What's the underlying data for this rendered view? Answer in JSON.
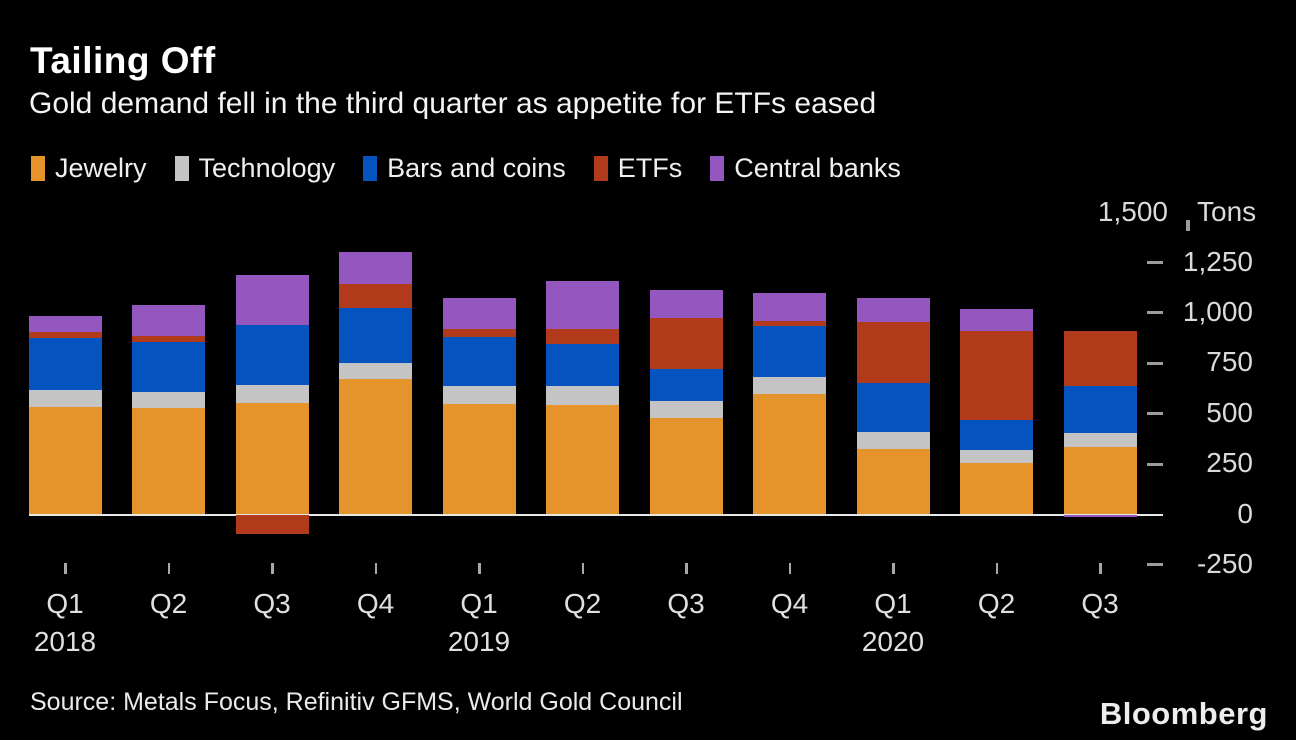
{
  "header": {
    "title": "Tailing Off",
    "subtitle": "Gold demand fell in the third quarter as appetite for ETFs eased"
  },
  "chart_data": {
    "type": "bar",
    "stacked": true,
    "title": "Tailing Off",
    "subtitle": "Gold demand fell in the third quarter as appetite for ETFs eased",
    "unit": "Tons",
    "categories": [
      "Q1",
      "Q2",
      "Q3",
      "Q4",
      "Q1",
      "Q2",
      "Q3",
      "Q4",
      "Q1",
      "Q2",
      "Q3"
    ],
    "year_labels": [
      {
        "text": "2018",
        "category_index": 0
      },
      {
        "text": "2019",
        "category_index": 4
      },
      {
        "text": "2020",
        "category_index": 8
      }
    ],
    "series": [
      {
        "name": "Jewelry",
        "color": "#E5942C",
        "values": [
          535,
          530,
          555,
          670,
          550,
          545,
          478,
          597,
          325,
          253,
          335
        ]
      },
      {
        "name": "Technology",
        "color": "#C4C4C4",
        "values": [
          85,
          80,
          85,
          80,
          85,
          90,
          85,
          87,
          83,
          67,
          68
        ]
      },
      {
        "name": "Bars and coins",
        "color": "#0553BE",
        "values": [
          255,
          245,
          300,
          275,
          245,
          212,
          158,
          250,
          243,
          150,
          235
        ]
      },
      {
        "name": "ETFs",
        "color": "#B03A1A",
        "values": [
          30,
          28,
          -95,
          120,
          42,
          72,
          255,
          27,
          303,
          440,
          272
        ]
      },
      {
        "name": "Central banks",
        "color": "#9357BF",
        "values": [
          80,
          158,
          250,
          155,
          152,
          237,
          140,
          137,
          120,
          108,
          -12
        ]
      }
    ],
    "yaxis": {
      "side": "right",
      "tick_labels": [
        "1,500",
        "1,250",
        "1,000",
        "750",
        "500",
        "250",
        "0",
        "-250"
      ],
      "tick_values": [
        1500,
        1250,
        1000,
        750,
        500,
        250,
        0,
        -250
      ],
      "unit": "Tons"
    },
    "ylim": [
      -250,
      1500
    ],
    "gridlines": "zero-only",
    "legend_position": "top"
  },
  "colors": {
    "background": "#000000",
    "zero_line": "#E8E8E6",
    "axis_text": "#DADADA",
    "tick_mark": "#9B9B9B",
    "title_text": "#FFFFFF"
  },
  "footer": {
    "source": "Source: Metals Focus, Refinitiv GFMS, World Gold Council",
    "brand": "Bloomberg"
  }
}
